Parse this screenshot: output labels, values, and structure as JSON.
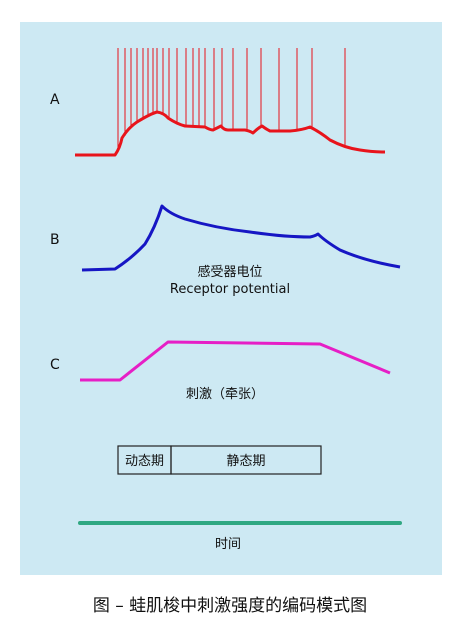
{
  "panels": {
    "a_label": "A",
    "b_label": "B",
    "c_label": "C"
  },
  "captions": {
    "receptor_cn": "感受器电位",
    "receptor_en": "Receptor potential",
    "stimulus": "刺激（牵张）",
    "time": "时间"
  },
  "phase_bar": {
    "dynamic": "动态期",
    "static": "静态期"
  },
  "figure_title": "图 – 蛙肌梭中刺激强度的编码模式图",
  "colors": {
    "panel_bg": "#cde9f3",
    "trace_a": "#e8141b",
    "trace_b": "#1616c4",
    "trace_c": "#e61fc6",
    "time_axis": "#2fa882",
    "phase_border": "#222222"
  }
}
